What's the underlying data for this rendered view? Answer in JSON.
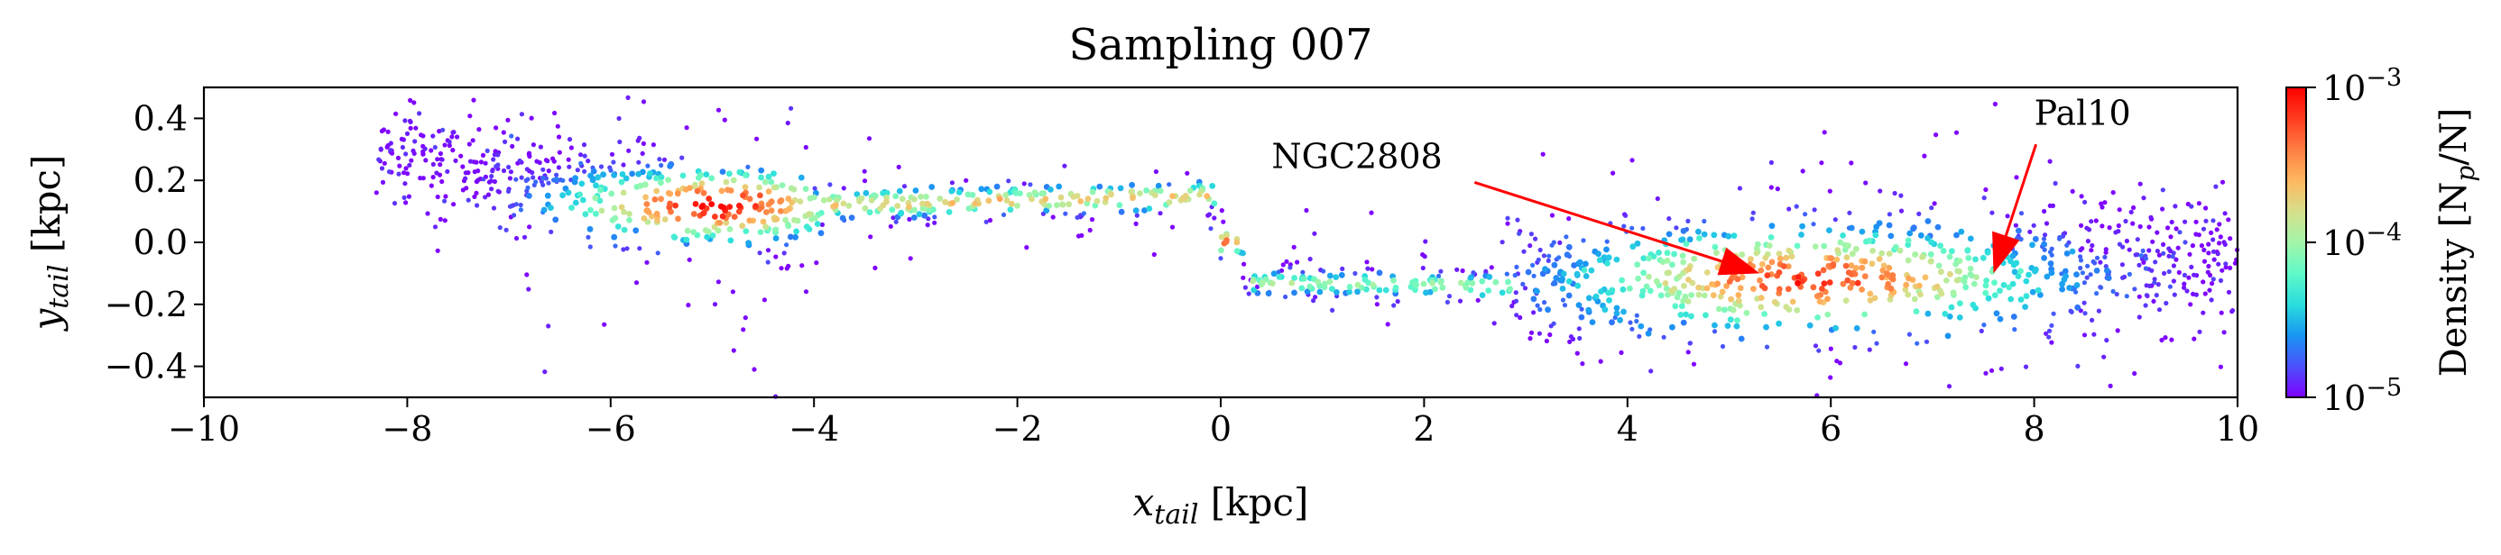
{
  "chart_data": {
    "type": "scatter",
    "title": "Sampling 007",
    "xlabel_main": "x",
    "xlabel_sub": "tail",
    "xlabel_unit": " [kpc]",
    "ylabel_main": "y",
    "ylabel_sub": "tail",
    "ylabel_unit": " [kpc]",
    "xlim": [
      -10,
      10
    ],
    "ylim": [
      -0.5,
      0.5
    ],
    "x_ticks": [
      -10,
      -8,
      -6,
      -4,
      -2,
      0,
      2,
      4,
      6,
      8,
      10
    ],
    "x_tick_labels": [
      "−10",
      "−8",
      "−6",
      "−4",
      "−2",
      "0",
      "2",
      "4",
      "6",
      "8",
      "10"
    ],
    "y_ticks": [
      -0.4,
      -0.2,
      0.0,
      0.2,
      0.4
    ],
    "y_tick_labels": [
      "−0.4",
      "−0.2",
      "0.0",
      "0.2",
      "0.4"
    ],
    "grid": false,
    "colormap": "rainbow",
    "color_scale": "log",
    "colorbar": {
      "label_main": "Density [N",
      "label_sub": "p",
      "label_tail": "/N]",
      "range": [
        1e-05,
        0.001
      ],
      "ticks": [
        1e-05,
        0.0001,
        0.001
      ],
      "tick_base": "10",
      "tick_exponents": [
        "−5",
        "−4",
        "−3"
      ],
      "colors": [
        "#7f00ff",
        "#4b51fb",
        "#1996f3",
        "#2adddd",
        "#60f9c8",
        "#a3f5a8",
        "#d6df8a",
        "#ffb760",
        "#ff7e42",
        "#ff3c1f",
        "#ff0000"
      ]
    },
    "density_features": [
      {
        "x": [
          -8.3,
          -4.0
        ],
        "y": [
          0.28,
          0.08
        ],
        "width": 0.14,
        "peak_x": -5.0,
        "peak_y": 0.12,
        "peak_density": 0.0009
      },
      {
        "x": [
          -4.0,
          -0.1
        ],
        "y": [
          0.12,
          0.15
        ],
        "width": 0.06,
        "peak_density": 0.0002
      },
      {
        "x": [
          -0.1,
          0.3
        ],
        "y": [
          0.12,
          -0.13
        ],
        "width": 0.05,
        "peak_x": 0.0,
        "peak_y": 0.0,
        "peak_density": 0.0005
      },
      {
        "x": [
          0.3,
          2.8
        ],
        "y": [
          -0.13,
          -0.14
        ],
        "width": 0.05,
        "peak_density": 0.0001
      },
      {
        "x": [
          2.8,
          10.0
        ],
        "y": [
          -0.14,
          -0.05
        ],
        "width": 0.2,
        "peak_x": 5.8,
        "peak_y": -0.12,
        "peak_density": 0.0006
      }
    ],
    "annotations": [
      {
        "text": "NGC2808",
        "xy": [
          5.3,
          -0.1
        ],
        "xytext": [
          0.5,
          0.24
        ],
        "color": "#ff0000"
      },
      {
        "text": "Pal10",
        "xy": [
          7.6,
          -0.1
        ],
        "xytext": [
          8.0,
          0.38
        ],
        "color": "#ff0000"
      }
    ]
  }
}
